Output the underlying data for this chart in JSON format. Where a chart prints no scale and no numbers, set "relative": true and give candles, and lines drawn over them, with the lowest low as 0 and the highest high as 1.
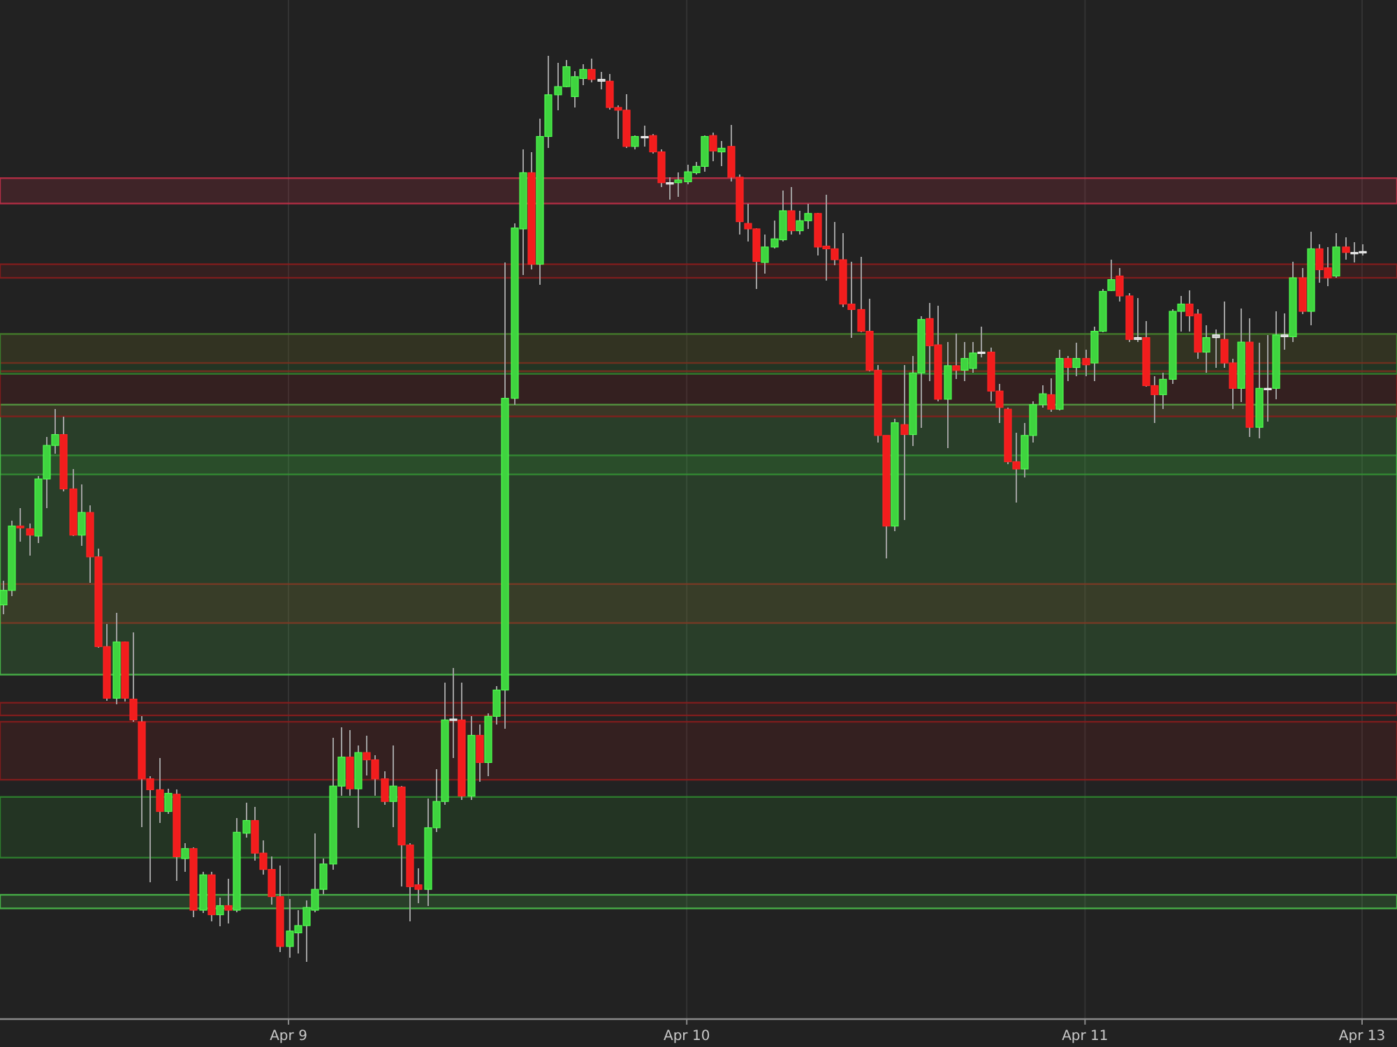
{
  "chart_data": {
    "type": "candlestick",
    "relative": true,
    "grid": "x",
    "categories": [
      null,
      null,
      null,
      null,
      null,
      null,
      null,
      null,
      null,
      null,
      null,
      null,
      null,
      null,
      null,
      null,
      null,
      null,
      null,
      null,
      null,
      null,
      null,
      null,
      null,
      null,
      null,
      null,
      null,
      null,
      null,
      null,
      null,
      "Apr 9",
      null,
      null,
      null,
      null,
      null,
      null,
      null,
      null,
      null,
      null,
      null,
      null,
      null,
      null,
      null,
      null,
      null,
      null,
      null,
      null,
      null,
      null,
      null,
      null,
      null,
      null,
      null,
      null,
      null,
      null,
      null,
      null,
      null,
      null,
      null,
      null,
      null,
      null,
      null,
      null,
      null,
      null,
      null,
      null,
      null,
      "Apr 10",
      null,
      null,
      null,
      null,
      null,
      null,
      null,
      null,
      null,
      null,
      null,
      null,
      null,
      null,
      null,
      null,
      null,
      null,
      null,
      null,
      null,
      null,
      null,
      null,
      null,
      null,
      null,
      null,
      null,
      null,
      null,
      null,
      null,
      null,
      null,
      null,
      null,
      null,
      null,
      null,
      null,
      null,
      null,
      null,
      null,
      "Apr 11",
      null,
      null,
      null,
      null,
      null,
      null,
      null,
      null,
      null,
      null,
      null,
      null,
      null,
      null,
      null,
      null,
      null,
      null,
      null,
      null,
      null,
      null,
      null,
      null,
      null,
      null,
      null,
      null,
      null,
      null,
      null,
      "Apr 13"
    ],
    "ohlc": [
      [
        0.394,
        0.421,
        0.384,
        0.41
      ],
      [
        0.41,
        0.487,
        0.404,
        0.481
      ],
      [
        0.481,
        0.501,
        0.464,
        0.479
      ],
      [
        0.478,
        0.484,
        0.448,
        0.471
      ],
      [
        0.47,
        0.536,
        0.462,
        0.533
      ],
      [
        0.533,
        0.579,
        0.501,
        0.57
      ],
      [
        0.57,
        0.61,
        0.561,
        0.582
      ],
      [
        0.582,
        0.602,
        0.519,
        0.522
      ],
      [
        0.522,
        0.544,
        0.47,
        0.471
      ],
      [
        0.471,
        0.527,
        0.459,
        0.496
      ],
      [
        0.496,
        0.504,
        0.418,
        0.447
      ],
      [
        0.447,
        0.456,
        0.347,
        0.348
      ],
      [
        0.348,
        0.373,
        0.288,
        0.291
      ],
      [
        0.291,
        0.385,
        0.284,
        0.353
      ],
      [
        0.353,
        0.354,
        0.287,
        0.291
      ],
      [
        0.29,
        0.364,
        0.265,
        0.267
      ],
      [
        0.265,
        0.271,
        0.149,
        0.202
      ],
      [
        0.202,
        0.205,
        0.088,
        0.19
      ],
      [
        0.19,
        0.225,
        0.153,
        0.166
      ],
      [
        0.166,
        0.191,
        0.163,
        0.186
      ],
      [
        0.185,
        0.19,
        0.089,
        0.116
      ],
      [
        0.114,
        0.131,
        0.099,
        0.125
      ],
      [
        0.125,
        0.126,
        0.049,
        0.057
      ],
      [
        0.057,
        0.099,
        0.054,
        0.096
      ],
      [
        0.096,
        0.099,
        0.045,
        0.052
      ],
      [
        0.052,
        0.071,
        0.039,
        0.062
      ],
      [
        0.062,
        0.092,
        0.042,
        0.057
      ],
      [
        0.057,
        0.159,
        0.055,
        0.143
      ],
      [
        0.142,
        0.176,
        0.137,
        0.156
      ],
      [
        0.156,
        0.171,
        0.112,
        0.12
      ],
      [
        0.12,
        0.134,
        0.096,
        0.102
      ],
      [
        0.102,
        0.116,
        0.063,
        0.072
      ],
      [
        0.072,
        0.106,
        0.011,
        0.017
      ],
      [
        0.017,
        0.069,
        0.005,
        0.034
      ],
      [
        0.032,
        0.057,
        0.009,
        0.04
      ],
      [
        0.04,
        0.068,
        0,
        0.06
      ],
      [
        0.057,
        0.142,
        0.055,
        0.08
      ],
      [
        0.08,
        0.114,
        0.075,
        0.108
      ],
      [
        0.108,
        0.247,
        0.102,
        0.194
      ],
      [
        0.194,
        0.259,
        0.183,
        0.226
      ],
      [
        0.226,
        0.256,
        0.183,
        0.191
      ],
      [
        0.191,
        0.239,
        0.148,
        0.231
      ],
      [
        0.231,
        0.25,
        0.206,
        0.223
      ],
      [
        0.223,
        0.228,
        0.183,
        0.202
      ],
      [
        0.202,
        0.21,
        0.173,
        0.177
      ],
      [
        0.177,
        0.239,
        0.149,
        0.194
      ],
      [
        0.193,
        0.194,
        0.083,
        0.129
      ],
      [
        0.129,
        0.131,
        0.045,
        0.083
      ],
      [
        0.085,
        0.103,
        0.065,
        0.08
      ],
      [
        0.08,
        0.18,
        0.062,
        0.148
      ],
      [
        0.148,
        0.213,
        0.143,
        0.177
      ],
      [
        0.177,
        0.308,
        0.173,
        0.267
      ],
      [
        0.268,
        0.324,
        0.225,
        0.268
      ],
      [
        0.267,
        0.308,
        0.179,
        0.183
      ],
      [
        0.183,
        0.271,
        0.179,
        0.25
      ],
      [
        0.25,
        0.262,
        0.199,
        0.22
      ],
      [
        0.22,
        0.274,
        0.205,
        0.271
      ],
      [
        0.271,
        0.304,
        0.262,
        0.3
      ],
      [
        0.3,
        0.772,
        0.257,
        0.622
      ],
      [
        0.622,
        0.815,
        0.615,
        0.81
      ],
      [
        0.809,
        0.897,
        0.758,
        0.871
      ],
      [
        0.871,
        0.894,
        0.764,
        0.77
      ],
      [
        0.77,
        0.931,
        0.747,
        0.911
      ],
      [
        0.911,
        1,
        0.898,
        0.957
      ],
      [
        0.957,
        0.992,
        0.94,
        0.966
      ],
      [
        0.966,
        0.995,
        0.965,
        0.988
      ],
      [
        0.955,
        0.983,
        0.943,
        0.977
      ],
      [
        0.975,
        0.991,
        0.968,
        0.985
      ],
      [
        0.985,
        0.997,
        0.971,
        0.974
      ],
      [
        0.974,
        0.982,
        0.963,
        0.972
      ],
      [
        0.972,
        0.98,
        0.941,
        0.943
      ],
      [
        0.943,
        0.945,
        0.908,
        0.94
      ],
      [
        0.94,
        0.958,
        0.898,
        0.9
      ],
      [
        0.9,
        0.912,
        0.897,
        0.911
      ],
      [
        0.911,
        0.923,
        0.9,
        0.911
      ],
      [
        0.912,
        0.914,
        0.892,
        0.894
      ],
      [
        0.894,
        0.897,
        0.855,
        0.86
      ],
      [
        0.86,
        0.866,
        0.841,
        0.86
      ],
      [
        0.86,
        0.871,
        0.844,
        0.863
      ],
      [
        0.861,
        0.88,
        0.858,
        0.872
      ],
      [
        0.871,
        0.883,
        0.869,
        0.878
      ],
      [
        0.878,
        0.912,
        0.872,
        0.911
      ],
      [
        0.912,
        0.915,
        0.884,
        0.895
      ],
      [
        0.894,
        0.906,
        0.878,
        0.898
      ],
      [
        0.9,
        0.924,
        0.861,
        0.866
      ],
      [
        0.866,
        0.869,
        0.803,
        0.817
      ],
      [
        0.815,
        0.837,
        0.795,
        0.809
      ],
      [
        0.809,
        0.81,
        0.743,
        0.773
      ],
      [
        0.772,
        0.803,
        0.76,
        0.789
      ],
      [
        0.789,
        0.818,
        0.787,
        0.798
      ],
      [
        0.797,
        0.851,
        0.795,
        0.829
      ],
      [
        0.829,
        0.855,
        0.803,
        0.807
      ],
      [
        0.807,
        0.829,
        0.803,
        0.818
      ],
      [
        0.818,
        0.837,
        0.809,
        0.826
      ],
      [
        0.826,
        0.827,
        0.78,
        0.789
      ],
      [
        0.79,
        0.847,
        0.752,
        0.787
      ],
      [
        0.787,
        0.817,
        0.769,
        0.775
      ],
      [
        0.775,
        0.804,
        0.723,
        0.726
      ],
      [
        0.726,
        0.773,
        0.689,
        0.72
      ],
      [
        0.72,
        0.778,
        0.695,
        0.696
      ],
      [
        0.696,
        0.732,
        0.652,
        0.653
      ],
      [
        0.653,
        0.659,
        0.573,
        0.581
      ],
      [
        0.581,
        0.581,
        0.445,
        0.481
      ],
      [
        0.481,
        0.599,
        0.475,
        0.595
      ],
      [
        0.593,
        0.659,
        0.488,
        0.582
      ],
      [
        0.582,
        0.669,
        0.569,
        0.65
      ],
      [
        0.65,
        0.713,
        0.589,
        0.709
      ],
      [
        0.71,
        0.727,
        0.641,
        0.68
      ],
      [
        0.681,
        0.724,
        0.619,
        0.621
      ],
      [
        0.621,
        0.684,
        0.567,
        0.658
      ],
      [
        0.658,
        0.693,
        0.643,
        0.653
      ],
      [
        0.653,
        0.684,
        0.641,
        0.666
      ],
      [
        0.655,
        0.684,
        0.65,
        0.672
      ],
      [
        0.673,
        0.701,
        0.667,
        0.673
      ],
      [
        0.673,
        0.678,
        0.619,
        0.63
      ],
      [
        0.63,
        0.638,
        0.595,
        0.612
      ],
      [
        0.61,
        0.612,
        0.549,
        0.552
      ],
      [
        0.552,
        0.584,
        0.507,
        0.544
      ],
      [
        0.544,
        0.595,
        0.535,
        0.581
      ],
      [
        0.581,
        0.619,
        0.573,
        0.615
      ],
      [
        0.615,
        0.636,
        0.612,
        0.627
      ],
      [
        0.626,
        0.644,
        0.607,
        0.61
      ],
      [
        0.61,
        0.676,
        0.609,
        0.666
      ],
      [
        0.666,
        0.669,
        0.641,
        0.656
      ],
      [
        0.656,
        0.683,
        0.646,
        0.666
      ],
      [
        0.666,
        0.676,
        0.646,
        0.659
      ],
      [
        0.661,
        0.701,
        0.641,
        0.696
      ],
      [
        0.696,
        0.743,
        0.695,
        0.74
      ],
      [
        0.741,
        0.775,
        0.74,
        0.753
      ],
      [
        0.757,
        0.766,
        0.729,
        0.735
      ],
      [
        0.735,
        0.738,
        0.684,
        0.687
      ],
      [
        0.689,
        0.733,
        0.684,
        0.687
      ],
      [
        0.689,
        0.707,
        0.635,
        0.636
      ],
      [
        0.636,
        0.646,
        0.595,
        0.626
      ],
      [
        0.626,
        0.65,
        0.61,
        0.643
      ],
      [
        0.643,
        0.72,
        0.638,
        0.718
      ],
      [
        0.718,
        0.735,
        0.696,
        0.726
      ],
      [
        0.726,
        0.741,
        0.696,
        0.713
      ],
      [
        0.715,
        0.72,
        0.666,
        0.673
      ],
      [
        0.673,
        0.703,
        0.65,
        0.689
      ],
      [
        0.689,
        0.698,
        0.656,
        0.692
      ],
      [
        0.687,
        0.729,
        0.656,
        0.661
      ],
      [
        0.661,
        0.666,
        0.61,
        0.633
      ],
      [
        0.633,
        0.721,
        0.618,
        0.684
      ],
      [
        0.684,
        0.71,
        0.579,
        0.59
      ],
      [
        0.59,
        0.683,
        0.578,
        0.633
      ],
      [
        0.633,
        0.692,
        0.596,
        0.633
      ],
      [
        0.633,
        0.718,
        0.621,
        0.692
      ],
      [
        0.69,
        0.716,
        0.676,
        0.692
      ],
      [
        0.69,
        0.773,
        0.684,
        0.755
      ],
      [
        0.755,
        0.766,
        0.715,
        0.718
      ],
      [
        0.718,
        0.806,
        0.703,
        0.787
      ],
      [
        0.787,
        0.792,
        0.75,
        0.764
      ],
      [
        0.766,
        0.789,
        0.746,
        0.755
      ],
      [
        0.757,
        0.804,
        0.755,
        0.789
      ],
      [
        0.789,
        0.8,
        0.775,
        0.783
      ],
      [
        0.783,
        0.794,
        0.772,
        0.783
      ],
      [
        0.784,
        0.792,
        0.78,
        0.784
      ]
    ],
    "colors": [
      "#3fd43f",
      "#3fd43f",
      "#f21d1d",
      "#f21d1d",
      "#3fd43f",
      "#3fd43f",
      "#3fd43f",
      "#f21d1d",
      "#f21d1d",
      "#3fd43f",
      "#f21d1d",
      "#f21d1d",
      "#f21d1d",
      "#3fd43f",
      "#f21d1d",
      "#f21d1d",
      "#f21d1d",
      "#f21d1d",
      "#f21d1d",
      "#3fd43f",
      "#f21d1d",
      "#3fd43f",
      "#f21d1d",
      "#3fd43f",
      "#f21d1d",
      "#3fd43f",
      "#f21d1d",
      "#3fd43f",
      "#3fd43f",
      "#f21d1d",
      "#f21d1d",
      "#f21d1d",
      "#f21d1d",
      "#3fd43f",
      "#3fd43f",
      "#3fd43f",
      "#3fd43f",
      "#3fd43f",
      "#3fd43f",
      "#3fd43f",
      "#f21d1d",
      "#3fd43f",
      "#f21d1d",
      "#f21d1d",
      "#f21d1d",
      "#3fd43f",
      "#f21d1d",
      "#f21d1d",
      "#f21d1d",
      "#3fd43f",
      "#3fd43f",
      "#3fd43f",
      "#c8c8c8",
      "#f21d1d",
      "#3fd43f",
      "#f21d1d",
      "#3fd43f",
      "#3fd43f",
      "#3fd43f",
      "#3fd43f",
      "#3fd43f",
      "#f21d1d",
      "#3fd43f",
      "#3fd43f",
      "#3fd43f",
      "#3fd43f",
      "#3fd43f",
      "#3fd43f",
      "#f21d1d",
      "#c8c8c8",
      "#f21d1d",
      "#f21d1d",
      "#f21d1d",
      "#3fd43f",
      "#c8c8c8",
      "#f21d1d",
      "#f21d1d",
      "#c8c8c8",
      "#3fd43f",
      "#3fd43f",
      "#3fd43f",
      "#3fd43f",
      "#f21d1d",
      "#3fd43f",
      "#f21d1d",
      "#f21d1d",
      "#f21d1d",
      "#f21d1d",
      "#3fd43f",
      "#3fd43f",
      "#3fd43f",
      "#f21d1d",
      "#3fd43f",
      "#3fd43f",
      "#f21d1d",
      "#f21d1d",
      "#f21d1d",
      "#f21d1d",
      "#f21d1d",
      "#f21d1d",
      "#f21d1d",
      "#f21d1d",
      "#f21d1d",
      "#3fd43f",
      "#f21d1d",
      "#3fd43f",
      "#3fd43f",
      "#f21d1d",
      "#f21d1d",
      "#3fd43f",
      "#f21d1d",
      "#3fd43f",
      "#3fd43f",
      "#c8c8c8",
      "#f21d1d",
      "#f21d1d",
      "#f21d1d",
      "#f21d1d",
      "#3fd43f",
      "#3fd43f",
      "#3fd43f",
      "#f21d1d",
      "#3fd43f",
      "#f21d1d",
      "#3fd43f",
      "#f21d1d",
      "#3fd43f",
      "#3fd43f",
      "#3fd43f",
      "#f21d1d",
      "#f21d1d",
      "#c8c8c8",
      "#f21d1d",
      "#f21d1d",
      "#3fd43f",
      "#3fd43f",
      "#3fd43f",
      "#f21d1d",
      "#f21d1d",
      "#3fd43f",
      "#c8c8c8",
      "#f21d1d",
      "#f21d1d",
      "#3fd43f",
      "#f21d1d",
      "#3fd43f",
      "#c8c8c8",
      "#3fd43f",
      "#c8c8c8",
      "#3fd43f",
      "#f21d1d",
      "#3fd43f",
      "#f21d1d",
      "#f21d1d",
      "#3fd43f",
      "#f21d1d",
      "#c8c8c8",
      "#c8c8c8"
    ],
    "bands": [
      {
        "axis": "y",
        "from": 0.538,
        "to": 0.559,
        "color": "#2f8a2f"
      },
      {
        "axis": "y",
        "from": 0.374,
        "to": 0.417,
        "color": "#8c1c1c"
      },
      {
        "axis": "y",
        "from": 0.272,
        "to": 0.286,
        "color": "#8c1c1c"
      },
      {
        "axis": "y",
        "from": 0.201,
        "to": 0.265,
        "color": "#8c1c1c"
      },
      {
        "axis": "y",
        "from": 0.115,
        "to": 0.182,
        "color": "#2f8a2f"
      },
      {
        "axis": "y",
        "from": 0.317,
        "to": 0.615,
        "color": "#4cc44c"
      },
      {
        "axis": "y",
        "from": 0.059,
        "to": 0.074,
        "color": "#4cc44c"
      },
      {
        "axis": "y",
        "from": 0.837,
        "to": 0.865,
        "color": "#c8304a"
      },
      {
        "axis": "y",
        "from": 0.755,
        "to": 0.77,
        "color": "#8c1c1c"
      },
      {
        "axis": "y",
        "from": 0.661,
        "to": 0.693,
        "color": "#8c1c1c"
      },
      {
        "axis": "y",
        "from": 0.602,
        "to": 0.652,
        "color": "#8c1c1c"
      },
      {
        "axis": "y",
        "from": 0.649,
        "to": 0.693,
        "color": "#2f8a2f"
      }
    ]
  }
}
